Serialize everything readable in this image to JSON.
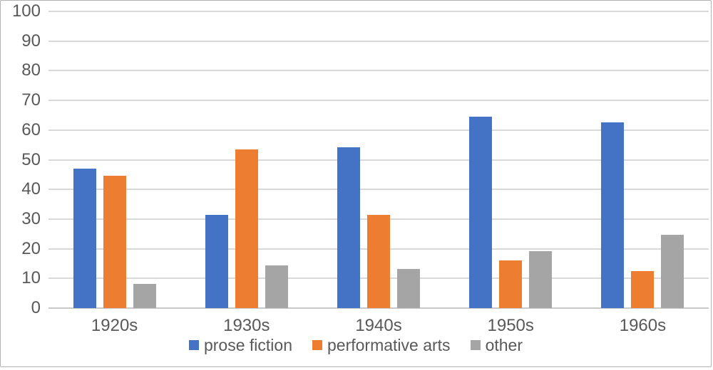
{
  "window": {
    "background": "#ffffff",
    "border_color": "#b4b2b0"
  },
  "colors": {
    "text": "#595959",
    "gridline": "#d9d9d9",
    "axis_baseline": "#c9c9c9",
    "series_blue": "#4472c4",
    "series_orange": "#ed7d31",
    "series_gray": "#a5a5a5"
  },
  "chart_data": {
    "type": "bar",
    "title": "",
    "xlabel": "",
    "ylabel": "",
    "categories": [
      "1920s",
      "1930s",
      "1940s",
      "1950s",
      "1960s"
    ],
    "series": [
      {
        "name": "prose fiction",
        "color": "#4472c4",
        "values": [
          47,
          31.5,
          54.2,
          64.5,
          62.5
        ]
      },
      {
        "name": "performative arts",
        "color": "#ed7d31",
        "values": [
          44.5,
          53.5,
          31.3,
          16,
          12.5
        ]
      },
      {
        "name": "other",
        "color": "#a5a5a5",
        "values": [
          8.2,
          14.4,
          13.2,
          19.3,
          24.8
        ]
      }
    ],
    "ylim": [
      0,
      100
    ],
    "ytick_step": 10,
    "yticks": [
      0,
      10,
      20,
      30,
      40,
      50,
      60,
      70,
      80,
      90,
      100
    ],
    "grid": true,
    "legend_position": "bottom",
    "legend_labels": [
      "prose fiction",
      "performative arts",
      "other"
    ]
  }
}
